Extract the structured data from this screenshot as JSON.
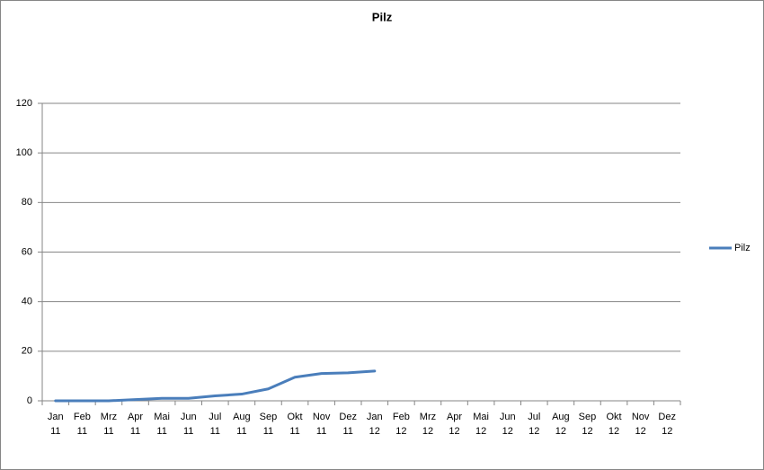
{
  "chart_data": {
    "type": "line",
    "title": "Pilz",
    "categories": [
      "Jan 11",
      "Feb 11",
      "Mrz 11",
      "Apr 11",
      "Mai 11",
      "Jun 11",
      "Jul 11",
      "Aug 11",
      "Sep 11",
      "Okt 11",
      "Nov 11",
      "Dez 11",
      "Jan 12",
      "Feb 12",
      "Mrz 12",
      "Apr 12",
      "Mai 12",
      "Jun 12",
      "Jul 12",
      "Aug 12",
      "Sep 12",
      "Okt 12",
      "Nov 12",
      "Dez 12"
    ],
    "series": [
      {
        "name": "Pilz",
        "color": "#4a7ebb",
        "values": [
          0,
          0,
          0,
          0.5,
          1,
          1,
          2,
          2.7,
          4.8,
          9.5,
          11,
          11.3,
          12,
          null,
          null,
          null,
          null,
          null,
          null,
          null,
          null,
          null,
          null,
          null
        ]
      }
    ],
    "ylim": [
      0,
      120
    ],
    "yticks": [
      0,
      20,
      40,
      60,
      80,
      100,
      120
    ],
    "grid": true,
    "legend": "right"
  }
}
